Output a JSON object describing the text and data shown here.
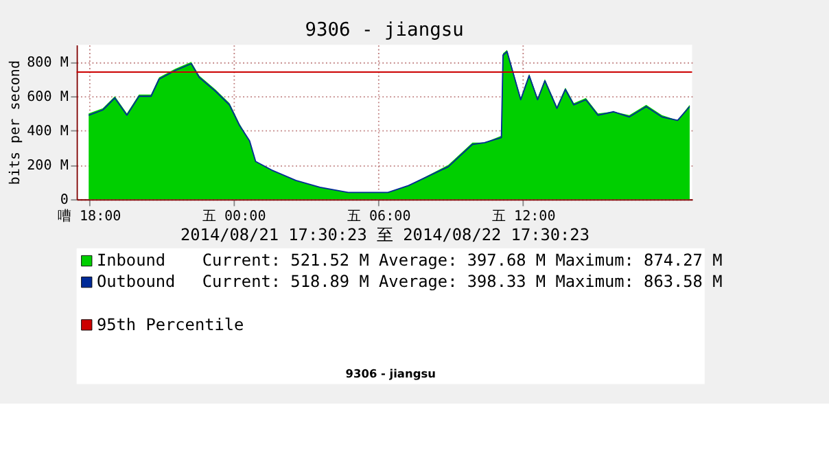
{
  "chart_data": {
    "type": "area",
    "title": "9306 - jiangsu",
    "xlabel": "2014/08/21 17:30:23 至 2014/08/22 17:30:23",
    "ylabel": "bits per second",
    "x": [
      "2014-08-21T18:00",
      "2014-08-21T18:35",
      "2014-08-21T19:05",
      "2014-08-21T19:35",
      "2014-08-21T20:05",
      "2014-08-21T20:35",
      "2014-08-21T20:55",
      "2014-08-21T21:35",
      "2014-08-21T22:15",
      "2014-08-21T22:35",
      "2014-08-21T23:15",
      "2014-08-21T23:50",
      "2014-08-22T00:15",
      "2014-08-22T00:40",
      "2014-08-22T00:55",
      "2014-08-22T01:35",
      "2014-08-22T02:35",
      "2014-08-22T03:35",
      "2014-08-22T04:45",
      "2014-08-22T06:24",
      "2014-08-22T07:15",
      "2014-08-22T08:54",
      "2014-08-22T09:54",
      "2014-08-22T10:24",
      "2014-08-22T11:06",
      "2014-08-22T11:10",
      "2014-08-22T11:20",
      "2014-08-22T11:54",
      "2014-08-22T12:15",
      "2014-08-22T12:36",
      "2014-08-22T12:54",
      "2014-08-22T13:24",
      "2014-08-22T13:45",
      "2014-08-22T14:06",
      "2014-08-22T14:36",
      "2014-08-22T15:06",
      "2014-08-22T15:45",
      "2014-08-22T16:24",
      "2014-08-22T17:06",
      "2014-08-22T17:45",
      "2014-08-22T18:24",
      "2014-08-22T18:54"
    ],
    "series": [
      {
        "name": "Inbound",
        "color": "#00cf00",
        "values": [
          500,
          530,
          600,
          500,
          610,
          610,
          710,
          760,
          800,
          720,
          640,
          560,
          440,
          340,
          220,
          170,
          110,
          70,
          40,
          40,
          80,
          200,
          330,
          330,
          370,
          850,
          870,
          590,
          730,
          590,
          700,
          540,
          650,
          560,
          590,
          500,
          510,
          490,
          550,
          490,
          460,
          550
        ]
      },
      {
        "name": "Outbound",
        "type": "line",
        "color": "#002a97",
        "values": [
          490,
          520,
          590,
          490,
          600,
          600,
          700,
          750,
          790,
          710,
          630,
          550,
          430,
          340,
          220,
          170,
          110,
          70,
          40,
          40,
          80,
          190,
          320,
          330,
          360,
          840,
          860,
          580,
          720,
          580,
          690,
          530,
          640,
          550,
          580,
          490,
          510,
          480,
          540,
          480,
          460,
          540
        ]
      }
    ],
    "xlim": [
      "2014-08-21T17:30",
      "2014-08-22T19:00"
    ],
    "ylim": [
      0,
      900
    ],
    "xticks": [
      {
        "value": "2014-08-21T18:00",
        "label": "嘈 18:00"
      },
      {
        "value": "2014-08-22T00:00",
        "label": "五 00:00"
      },
      {
        "value": "2014-08-22T06:00",
        "label": "五 06:00"
      },
      {
        "value": "2014-08-22T12:00",
        "label": "五 12:00"
      }
    ],
    "yticks": [
      0,
      {
        "value": 200,
        "label": "200 M"
      },
      {
        "value": 400,
        "label": "400 M"
      },
      {
        "value": 600,
        "label": "600 M"
      },
      {
        "value": 800,
        "label": "800 M"
      }
    ],
    "ref_lines": [
      {
        "axis": "y",
        "value": 741,
        "label": "95th Percentile",
        "color": "#cc0000"
      }
    ],
    "annotations": [
      "Current:   521.52 M   Average:   397.68 M   Maximum:   874.27 M",
      "Current:   518.89 M   Average:   398.33 M   Maximum:   863.58 M",
      "9306 - jiangsu"
    ],
    "grid": true,
    "legend": "bottom"
  }
}
